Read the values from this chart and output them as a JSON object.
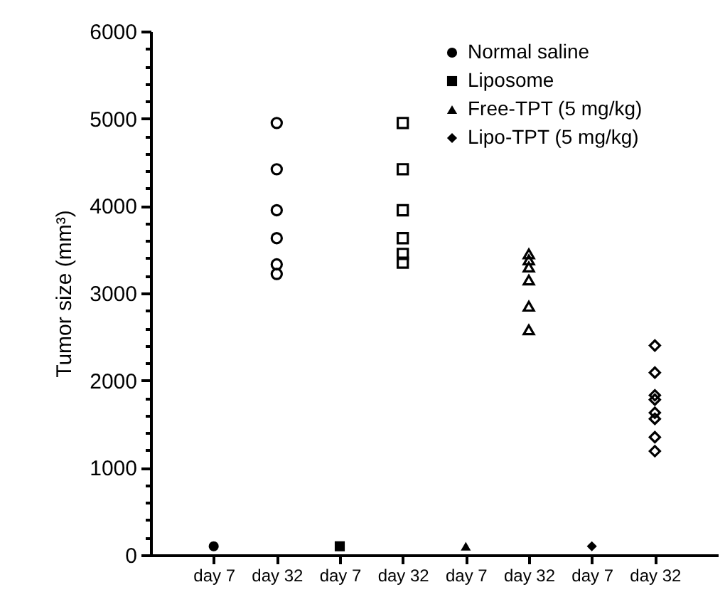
{
  "chart_data": {
    "type": "scatter",
    "ylabel": "Tumor size (mm³)",
    "categories": [
      "day 7",
      "day 32",
      "day 7",
      "day 32",
      "day 7",
      "day 32",
      "day 7",
      "day 32"
    ],
    "ylim": [
      0,
      6000
    ],
    "yticks": [
      0,
      {
        "value": 200,
        "label": null
      },
      {
        "value": 400,
        "label": null
      },
      {
        "value": 600,
        "label": null
      },
      {
        "value": 800,
        "label": null
      },
      1000,
      {
        "value": 1200,
        "label": null
      },
      {
        "value": 1400,
        "label": null
      },
      {
        "value": 1600,
        "label": null
      },
      {
        "value": 1800,
        "label": null
      },
      2000,
      {
        "value": 2200,
        "label": null
      },
      {
        "value": 2400,
        "label": null
      },
      {
        "value": 2600,
        "label": null
      },
      {
        "value": 2800,
        "label": null
      },
      3000,
      {
        "value": 3200,
        "label": null
      },
      {
        "value": 3400,
        "label": null
      },
      {
        "value": 3600,
        "label": null
      },
      {
        "value": 3800,
        "label": null
      },
      4000,
      {
        "value": 4200,
        "label": null
      },
      {
        "value": 4400,
        "label": null
      },
      {
        "value": 4600,
        "label": null
      },
      {
        "value": 4800,
        "label": null
      },
      5000,
      {
        "value": 5200,
        "label": null
      },
      {
        "value": 5400,
        "label": null
      },
      {
        "value": 5600,
        "label": null
      },
      {
        "value": 5800,
        "label": null
      },
      6000
    ],
    "grid": false,
    "legend": "top right",
    "series": [
      {
        "name": "Normal saline",
        "color": "#000000",
        "marker": "circle",
        "values": [
          100,
          null,
          null,
          null,
          null,
          null,
          null,
          null
        ]
      },
      {
        "name": "Liposome",
        "color": "#000000",
        "marker": "square",
        "values": [
          null,
          null,
          100,
          null,
          null,
          null,
          null,
          null
        ]
      },
      {
        "name": "Free-TPT (5 mg/kg)",
        "color": "#000000",
        "marker": "triangle",
        "values": [
          null,
          null,
          null,
          null,
          100,
          null,
          null,
          null
        ]
      },
      {
        "name": "Lipo-TPT (5 mg/kg)",
        "color": "#000000",
        "marker": "diamond",
        "values": [
          null,
          null,
          null,
          null,
          null,
          null,
          100,
          null
        ]
      },
      {
        "color": "#000000",
        "marker": "circle",
        "values": [
          null,
          4950,
          null,
          null,
          null,
          null,
          null,
          null
        ]
      },
      {
        "color": "#000000",
        "marker": "circle",
        "values": [
          null,
          4420,
          null,
          null,
          null,
          null,
          null,
          null
        ]
      },
      {
        "color": "#000000",
        "marker": "circle",
        "values": [
          null,
          3950,
          null,
          null,
          null,
          null,
          null,
          null
        ]
      },
      {
        "color": "#000000",
        "marker": "circle",
        "values": [
          null,
          3630,
          null,
          null,
          null,
          null,
          null,
          null
        ]
      },
      {
        "color": "#000000",
        "marker": "circle",
        "values": [
          null,
          3330,
          null,
          null,
          null,
          null,
          null,
          null
        ]
      },
      {
        "color": "#000000",
        "marker": "circle",
        "values": [
          null,
          3220,
          null,
          null,
          null,
          null,
          null,
          null
        ]
      },
      {
        "color": "#000000",
        "marker": "square",
        "values": [
          null,
          null,
          null,
          4950,
          null,
          null,
          null,
          null
        ]
      },
      {
        "color": "#000000",
        "marker": "square",
        "values": [
          null,
          null,
          null,
          4420,
          null,
          null,
          null,
          null
        ]
      },
      {
        "color": "#000000",
        "marker": "square",
        "values": [
          null,
          null,
          null,
          3950,
          null,
          null,
          null,
          null
        ]
      },
      {
        "color": "#000000",
        "marker": "square",
        "values": [
          null,
          null,
          null,
          3630,
          null,
          null,
          null,
          null
        ]
      },
      {
        "color": "#000000",
        "marker": "square",
        "values": [
          null,
          null,
          null,
          3450,
          null,
          null,
          null,
          null
        ]
      },
      {
        "color": "#000000",
        "marker": "square",
        "values": [
          null,
          null,
          null,
          3350,
          null,
          null,
          null,
          null
        ]
      },
      {
        "color": "#000000",
        "marker": "triangle",
        "values": [
          null,
          null,
          null,
          null,
          null,
          3450,
          null,
          null
        ]
      },
      {
        "color": "#000000",
        "marker": "triangle",
        "values": [
          null,
          null,
          null,
          null,
          null,
          3380,
          null,
          null
        ]
      },
      {
        "color": "#000000",
        "marker": "triangle",
        "values": [
          null,
          null,
          null,
          null,
          null,
          3300,
          null,
          null
        ]
      },
      {
        "color": "#000000",
        "marker": "triangle",
        "values": [
          null,
          null,
          null,
          null,
          null,
          3150,
          null,
          null
        ]
      },
      {
        "color": "#000000",
        "marker": "triangle",
        "values": [
          null,
          null,
          null,
          null,
          null,
          2850,
          null,
          null
        ]
      },
      {
        "color": "#000000",
        "marker": "triangle",
        "values": [
          null,
          null,
          null,
          null,
          null,
          2580,
          null,
          null
        ]
      },
      {
        "color": "#000000",
        "marker": "diamond",
        "values": [
          null,
          null,
          null,
          null,
          null,
          null,
          null,
          2400
        ]
      },
      {
        "color": "#000000",
        "marker": "diamond",
        "values": [
          null,
          null,
          null,
          null,
          null,
          null,
          null,
          2090
        ]
      },
      {
        "color": "#000000",
        "marker": "diamond",
        "values": [
          null,
          null,
          null,
          null,
          null,
          null,
          null,
          1830
        ]
      },
      {
        "color": "#000000",
        "marker": "diamond",
        "values": [
          null,
          null,
          null,
          null,
          null,
          null,
          null,
          1780
        ]
      },
      {
        "color": "#000000",
        "marker": "diamond",
        "values": [
          null,
          null,
          null,
          null,
          null,
          null,
          null,
          1630
        ]
      },
      {
        "color": "#000000",
        "marker": "diamond",
        "values": [
          null,
          null,
          null,
          null,
          null,
          null,
          null,
          1560
        ]
      },
      {
        "color": "#000000",
        "marker": "diamond",
        "values": [
          null,
          null,
          null,
          null,
          null,
          null,
          null,
          1350
        ]
      },
      {
        "color": "#000000",
        "marker": "diamond",
        "values": [
          null,
          null,
          null,
          null,
          null,
          null,
          null,
          1190
        ]
      }
    ]
  }
}
